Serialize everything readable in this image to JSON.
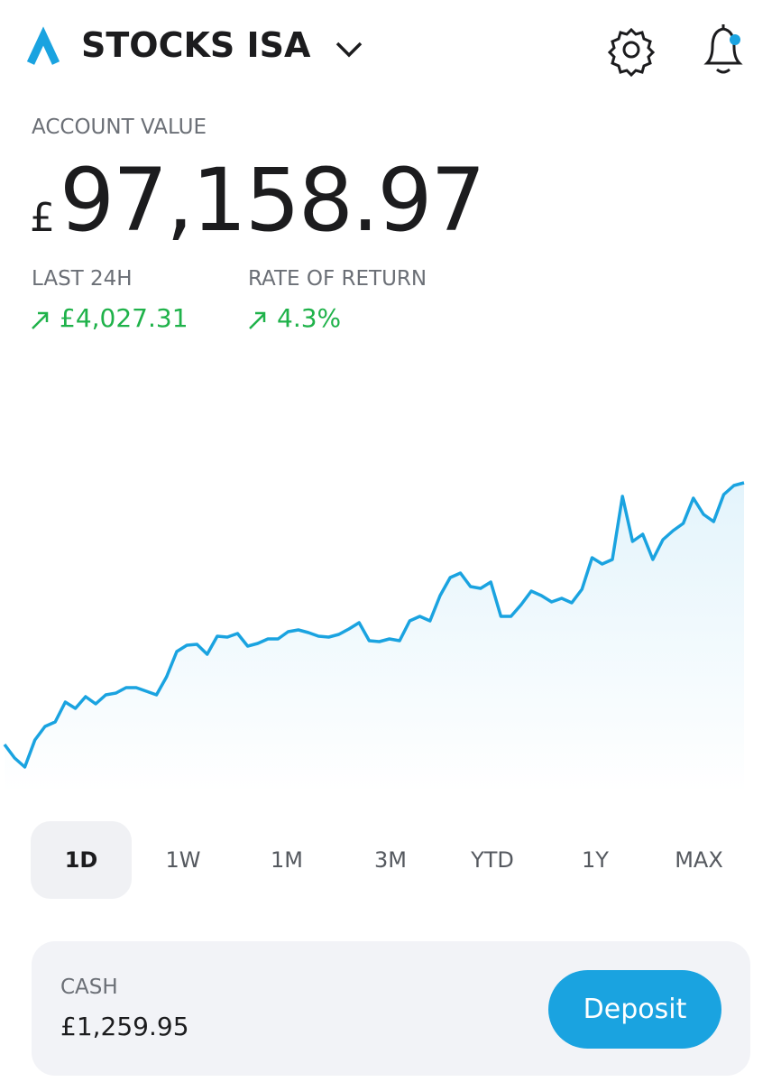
{
  "header": {
    "title": "STOCKS ISA"
  },
  "account": {
    "label": "ACCOUNT VALUE",
    "currency": "£",
    "amount": "97,158.97"
  },
  "stats": [
    {
      "label": "LAST 24H",
      "value": "£4,027.31"
    },
    {
      "label": "RATE OF RETURN",
      "value": "4.3%"
    }
  ],
  "chart_data": {
    "type": "line",
    "color": "#1aa3e0",
    "ylim": [
      0,
      400
    ],
    "values": [
      55,
      40,
      30,
      60,
      75,
      80,
      102,
      95,
      108,
      100,
      110,
      112,
      118,
      118,
      114,
      110,
      130,
      158,
      165,
      166,
      155,
      175,
      174,
      178,
      164,
      167,
      172,
      172,
      180,
      182,
      179,
      175,
      174,
      177,
      183,
      190,
      170,
      169,
      172,
      170,
      192,
      197,
      192,
      220,
      240,
      245,
      230,
      228,
      235,
      197,
      197,
      210,
      225,
      220,
      213,
      217,
      212,
      227,
      262,
      255,
      260,
      330,
      280,
      288,
      260,
      282,
      292,
      300,
      328,
      310,
      302,
      332,
      342,
      345
    ]
  },
  "periods": {
    "items": [
      "1D",
      "1W",
      "1M",
      "3M",
      "YTD",
      "1Y",
      "MAX"
    ],
    "selected": "1D"
  },
  "cash": {
    "label": "CASH",
    "value": "£1,259.95",
    "button": "Deposit"
  }
}
